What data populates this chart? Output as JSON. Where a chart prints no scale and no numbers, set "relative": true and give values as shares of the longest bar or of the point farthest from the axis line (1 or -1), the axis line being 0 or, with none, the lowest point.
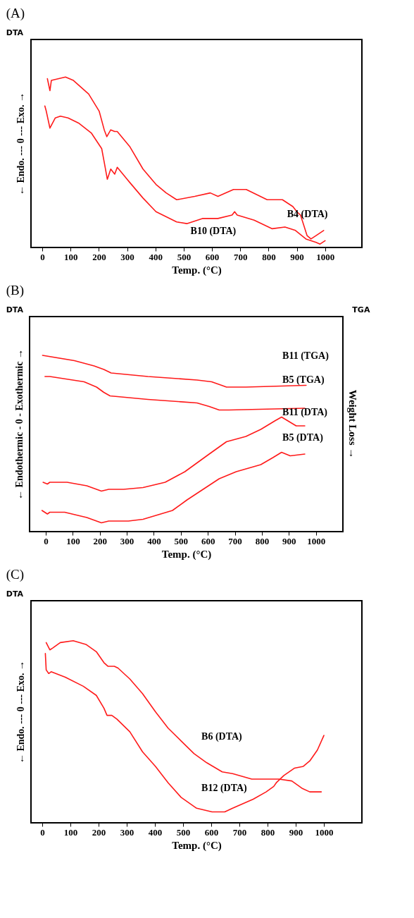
{
  "chart_data": [
    {
      "type": "line",
      "title": "(A)",
      "annotations": [
        "DTA",
        "B4 (DTA)",
        "B10 (DTA)"
      ],
      "xlabel": "Temp. (°C)",
      "ylabel": "← Endo.   ---   0   ---   Exo. →",
      "relative": true,
      "tick_labels": "x",
      "xlim": [
        -40,
        1130
      ],
      "xticks": [
        0,
        100,
        200,
        300,
        400,
        500,
        600,
        700,
        800,
        900,
        1000
      ],
      "grid": false,
      "legend": false,
      "line_style": "solid",
      "series": [
        {
          "color": "#ff1a1a",
          "x": [
            18,
            27,
            32,
            82,
            110,
            164,
            201,
            219,
            228,
            242,
            256,
            265,
            310,
            356,
            402,
            438,
            475,
            539,
            594,
            621,
            676,
            721,
            795,
            849,
            886,
            900,
            913,
            936,
            950,
            968,
            995
          ],
          "values": [
            0.99,
            0.92,
            0.98,
            1.0,
            0.98,
            0.9,
            0.8,
            0.69,
            0.65,
            0.69,
            0.68,
            0.68,
            0.59,
            0.46,
            0.37,
            0.32,
            0.28,
            0.3,
            0.32,
            0.3,
            0.34,
            0.34,
            0.28,
            0.28,
            0.24,
            0.21,
            0.19,
            0.07,
            0.05,
            0.07,
            0.1
          ]
        },
        {
          "color": "#ff1a1a",
          "x": [
            9,
            14,
            27,
            46,
            64,
            91,
            128,
            174,
            210,
            219,
            230,
            242,
            256,
            265,
            310,
            356,
            402,
            475,
            511,
            566,
            621,
            671,
            680,
            689,
            749,
            813,
            858,
            895,
            932,
            968,
            982,
            1000
          ],
          "values": [
            0.83,
            0.8,
            0.7,
            0.76,
            0.77,
            0.76,
            0.73,
            0.67,
            0.58,
            0.5,
            0.4,
            0.46,
            0.43,
            0.47,
            0.38,
            0.29,
            0.21,
            0.15,
            0.14,
            0.17,
            0.17,
            0.19,
            0.21,
            0.19,
            0.16,
            0.11,
            0.12,
            0.1,
            0.05,
            0.03,
            0.02,
            0.04
          ]
        }
      ]
    },
    {
      "type": "line",
      "title": "(B)",
      "annotations": [
        "DTA",
        "TGA",
        "B11 (TGA)",
        "B5 (TGA)",
        "B11 (DTA)",
        "B5 (DTA)"
      ],
      "xlabel": "Temp. (°C)",
      "ylabel": "← Endothermic - 0 - Exothermic →",
      "y2label": "Weight Loss →",
      "relative": true,
      "tick_labels": "x",
      "xlim": [
        -60,
        1100
      ],
      "xticks": [
        0,
        100,
        200,
        300,
        400,
        500,
        600,
        700,
        800,
        900,
        1000
      ],
      "grid": false,
      "legend": false,
      "line_style": "solid",
      "series": [
        {
          "color": "#ff1a1a",
          "x": [
            -12,
            106,
            179,
            215,
            242,
            378,
            560,
            614,
            651,
            669,
            741,
            964
          ],
          "values": [
            1.0,
            0.97,
            0.94,
            0.92,
            0.9,
            0.88,
            0.86,
            0.85,
            0.83,
            0.82,
            0.82,
            0.83
          ]
        },
        {
          "color": "#ff1a1a",
          "x": [
            -3,
            15,
            142,
            188,
            215,
            238,
            378,
            560,
            605,
            642,
            678,
            959
          ],
          "values": [
            0.88,
            0.88,
            0.85,
            0.82,
            0.79,
            0.77,
            0.75,
            0.73,
            0.71,
            0.69,
            0.69,
            0.7
          ]
        },
        {
          "color": "#ff1a1a",
          "x": [
            -10,
            6,
            15,
            79,
            152,
            206,
            233,
            288,
            360,
            442,
            515,
            605,
            669,
            741,
            796,
            850,
            873,
            927,
            959
          ],
          "values": [
            0.28,
            0.27,
            0.28,
            0.28,
            0.26,
            0.23,
            0.24,
            0.24,
            0.25,
            0.28,
            0.34,
            0.44,
            0.51,
            0.54,
            0.58,
            0.63,
            0.65,
            0.6,
            0.6
          ]
        },
        {
          "color": "#ff1a1a",
          "x": [
            -14,
            6,
            15,
            70,
            152,
            206,
            233,
            306,
            360,
            469,
            523,
            642,
            705,
            796,
            841,
            873,
            905,
            959
          ],
          "values": [
            0.12,
            0.1,
            0.11,
            0.11,
            0.08,
            0.05,
            0.06,
            0.06,
            0.07,
            0.12,
            0.18,
            0.3,
            0.34,
            0.38,
            0.42,
            0.45,
            0.43,
            0.44
          ]
        }
      ]
    },
    {
      "type": "line",
      "title": "(C)",
      "annotations": [
        "DTA",
        "B6 (DTA)",
        "B12 (DTA)"
      ],
      "xlabel": "Temp. (°C)",
      "ylabel": "← Endo.   ---   0   ---   Exo. →",
      "relative": true,
      "tick_labels": "x",
      "xlim": [
        -40,
        1135
      ],
      "xticks": [
        0,
        100,
        200,
        300,
        400,
        500,
        600,
        700,
        800,
        900,
        1000
      ],
      "grid": false,
      "legend": false,
      "line_style": "solid",
      "series": [
        {
          "color": "#ff1a1a",
          "x": [
            14,
            27,
            37,
            64,
            110,
            155,
            192,
            219,
            233,
            256,
            269,
            311,
            356,
            402,
            447,
            493,
            539,
            584,
            639,
            676,
            744,
            840,
            886,
            922,
            950,
            991
          ],
          "values": [
            0.99,
            0.95,
            0.96,
            0.99,
            1.0,
            0.98,
            0.94,
            0.88,
            0.86,
            0.86,
            0.85,
            0.79,
            0.71,
            0.61,
            0.52,
            0.45,
            0.38,
            0.33,
            0.28,
            0.27,
            0.24,
            0.24,
            0.23,
            0.19,
            0.17,
            0.17
          ]
        },
        {
          "color": "#ff1a1a",
          "x": [
            11,
            14,
            23,
            32,
            82,
            146,
            192,
            219,
            230,
            247,
            265,
            311,
            356,
            402,
            447,
            493,
            548,
            603,
            648,
            676,
            749,
            795,
            822,
            831,
            858,
            895,
            927,
            950,
            977,
            1000
          ],
          "values": [
            0.93,
            0.84,
            0.82,
            0.83,
            0.8,
            0.75,
            0.7,
            0.63,
            0.59,
            0.59,
            0.57,
            0.5,
            0.39,
            0.31,
            0.22,
            0.14,
            0.08,
            0.06,
            0.06,
            0.08,
            0.13,
            0.17,
            0.2,
            0.22,
            0.26,
            0.3,
            0.31,
            0.34,
            0.4,
            0.48
          ]
        }
      ]
    }
  ]
}
